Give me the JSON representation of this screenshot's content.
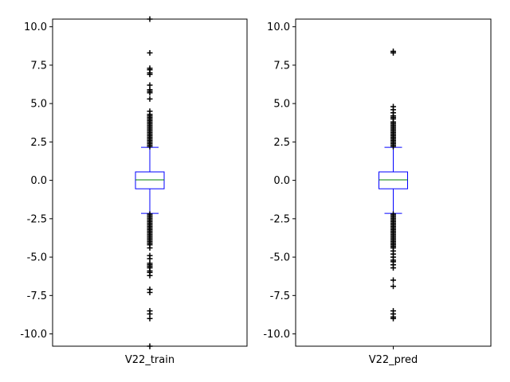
{
  "chart_data": [
    {
      "type": "box",
      "category": "V22_train",
      "ylim": [
        -10.8,
        10.5
      ],
      "yticks": [
        -10.0,
        -7.5,
        -5.0,
        -2.5,
        0.0,
        2.5,
        5.0,
        7.5,
        10.0
      ],
      "ytick_labels": [
        "-10.0",
        "-7.5",
        "-5.0",
        "-2.5",
        "0.0",
        "2.5",
        "5.0",
        "7.5",
        "10.0"
      ],
      "stats": {
        "whisker_low": -2.15,
        "q1": -0.55,
        "median": 0.03,
        "q3": 0.55,
        "whisker_high": 2.15
      },
      "outliers": [
        10.5,
        8.3,
        7.3,
        7.2,
        7.0,
        6.9,
        6.2,
        5.9,
        5.8,
        5.7,
        5.3,
        4.5,
        4.3,
        4.2,
        4.1,
        4.0,
        3.9,
        3.8,
        3.7,
        3.6,
        3.5,
        3.4,
        3.3,
        3.2,
        3.1,
        3.0,
        2.9,
        2.8,
        2.7,
        2.6,
        2.5,
        2.4,
        2.3,
        2.2,
        -2.2,
        -2.3,
        -2.4,
        -2.5,
        -2.6,
        -2.7,
        -2.8,
        -2.9,
        -3.0,
        -3.1,
        -3.2,
        -3.3,
        -3.4,
        -3.5,
        -3.6,
        -3.7,
        -3.8,
        -3.9,
        -4.0,
        -4.1,
        -4.2,
        -4.4,
        -4.9,
        -5.1,
        -5.4,
        -5.5,
        -5.6,
        -5.7,
        -5.9,
        -6.0,
        -6.2,
        -7.1,
        -7.3,
        -8.5,
        -8.7,
        -9.0,
        -10.8
      ]
    },
    {
      "type": "box",
      "category": "V22_pred",
      "ylim": [
        -10.8,
        10.5
      ],
      "yticks": [
        -10.0,
        -7.5,
        -5.0,
        -2.5,
        0.0,
        2.5,
        5.0,
        7.5,
        10.0
      ],
      "ytick_labels": [
        "-10.0",
        "-7.5",
        "-5.0",
        "-2.5",
        "0.0",
        "2.5",
        "5.0",
        "7.5",
        "10.0"
      ],
      "stats": {
        "whisker_low": -2.15,
        "q1": -0.55,
        "median": 0.03,
        "q3": 0.55,
        "whisker_high": 2.15
      },
      "outliers": [
        8.4,
        8.3,
        4.8,
        4.6,
        4.4,
        4.2,
        4.1,
        4.0,
        3.8,
        3.7,
        3.6,
        3.5,
        3.4,
        3.3,
        3.2,
        3.1,
        3.0,
        2.9,
        2.8,
        2.7,
        2.6,
        2.5,
        2.4,
        2.3,
        2.2,
        -2.2,
        -2.3,
        -2.4,
        -2.5,
        -2.6,
        -2.7,
        -2.8,
        -2.9,
        -3.0,
        -3.1,
        -3.2,
        -3.3,
        -3.4,
        -3.5,
        -3.6,
        -3.7,
        -3.8,
        -3.9,
        -4.0,
        -4.1,
        -4.2,
        -4.3,
        -4.4,
        -4.6,
        -4.8,
        -5.0,
        -5.2,
        -5.3,
        -5.5,
        -5.7,
        -6.5,
        -6.9,
        -8.5,
        -8.7,
        -8.9,
        -9.0
      ]
    }
  ],
  "colors": {
    "box": "#0000ff",
    "median": "#008000",
    "flier": "#000000",
    "axes": "#000000"
  }
}
